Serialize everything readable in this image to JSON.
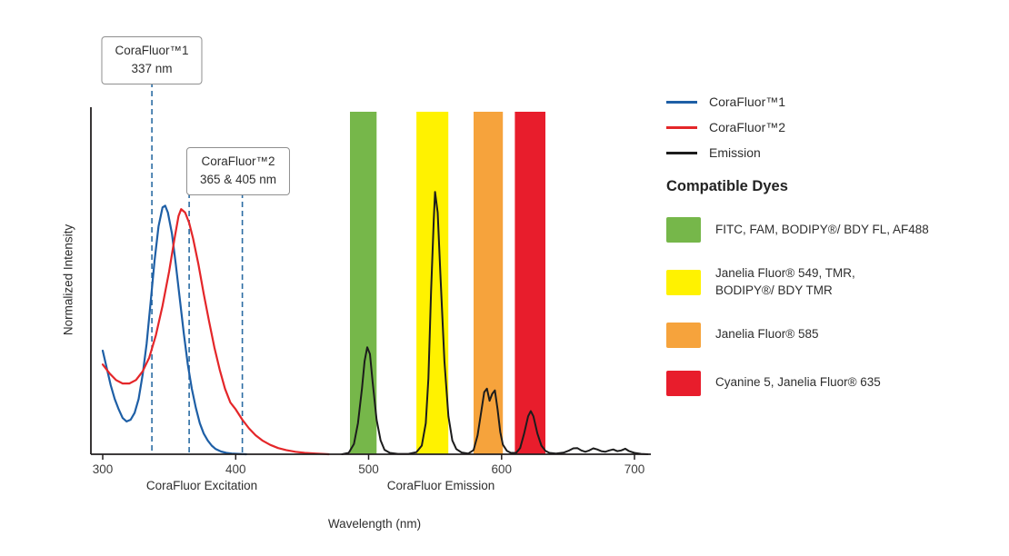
{
  "chart_data": {
    "type": "line",
    "title": "",
    "xlabel": "Wavelength (nm)",
    "ylabel": "Normalized Intensity",
    "xlim": [
      291,
      712
    ],
    "ylim": [
      0,
      1.05
    ],
    "grid": false,
    "legend_position": "right",
    "x_ticks": [
      300,
      400,
      500,
      600,
      700
    ],
    "axis_color": "#231f20",
    "tick_label_color": "#3d3d3d",
    "callout_line_color": "#2b6ca3",
    "axis_annotations": [
      {
        "text": "CoraFluor Excitation",
        "x_nm": 372
      },
      {
        "text": "CoraFluor Emission",
        "x_nm": 555
      }
    ],
    "callouts": [
      {
        "lines": [
          "CoraFluor™1",
          "337 nm"
        ],
        "wavelengths_nm": [
          337
        ]
      },
      {
        "lines": [
          "CoraFluor™2",
          "365 & 405 nm"
        ],
        "wavelengths_nm": [
          365,
          405
        ]
      }
    ],
    "bands": [
      {
        "id": "green",
        "from_nm": 486,
        "to_nm": 506,
        "color": "#76b74a"
      },
      {
        "id": "yellow",
        "from_nm": 536,
        "to_nm": 560,
        "color": "#fff200"
      },
      {
        "id": "orange",
        "from_nm": 579,
        "to_nm": 601,
        "color": "#f6a33c"
      },
      {
        "id": "red",
        "from_nm": 610,
        "to_nm": 633,
        "color": "#e81d2c"
      }
    ],
    "series": [
      {
        "id": "corafluor-1-excitation",
        "name": "CoraFluor™1",
        "color": "#1e5fa6",
        "stroke_width": 2.2,
        "points": [
          [
            300,
            0.3
          ],
          [
            303,
            0.25
          ],
          [
            306,
            0.2
          ],
          [
            309,
            0.16
          ],
          [
            312,
            0.13
          ],
          [
            315,
            0.105
          ],
          [
            318,
            0.095
          ],
          [
            321,
            0.1
          ],
          [
            324,
            0.12
          ],
          [
            327,
            0.16
          ],
          [
            330,
            0.23
          ],
          [
            333,
            0.32
          ],
          [
            336,
            0.44
          ],
          [
            339,
            0.56
          ],
          [
            342,
            0.66
          ],
          [
            345,
            0.715
          ],
          [
            347,
            0.72
          ],
          [
            349,
            0.7
          ],
          [
            352,
            0.64
          ],
          [
            355,
            0.55
          ],
          [
            358,
            0.45
          ],
          [
            361,
            0.35
          ],
          [
            364,
            0.26
          ],
          [
            367,
            0.19
          ],
          [
            370,
            0.135
          ],
          [
            373,
            0.09
          ],
          [
            376,
            0.06
          ],
          [
            379,
            0.04
          ],
          [
            382,
            0.025
          ],
          [
            385,
            0.015
          ],
          [
            389,
            0.008
          ],
          [
            393,
            0.004
          ],
          [
            397,
            0.002
          ],
          [
            402,
            0.001
          ],
          [
            408,
            0
          ]
        ]
      },
      {
        "id": "corafluor-2-excitation",
        "name": "CoraFluor™2",
        "color": "#e42629",
        "stroke_width": 2.2,
        "points": [
          [
            300,
            0.26
          ],
          [
            305,
            0.235
          ],
          [
            310,
            0.215
          ],
          [
            315,
            0.205
          ],
          [
            320,
            0.205
          ],
          [
            325,
            0.215
          ],
          [
            330,
            0.24
          ],
          [
            335,
            0.28
          ],
          [
            340,
            0.345
          ],
          [
            345,
            0.43
          ],
          [
            350,
            0.53
          ],
          [
            354,
            0.625
          ],
          [
            357,
            0.69
          ],
          [
            359,
            0.71
          ],
          [
            362,
            0.7
          ],
          [
            365,
            0.67
          ],
          [
            368,
            0.625
          ],
          [
            372,
            0.55
          ],
          [
            376,
            0.465
          ],
          [
            380,
            0.385
          ],
          [
            384,
            0.31
          ],
          [
            388,
            0.245
          ],
          [
            392,
            0.19
          ],
          [
            396,
            0.15
          ],
          [
            400,
            0.13
          ],
          [
            405,
            0.1
          ],
          [
            410,
            0.075
          ],
          [
            415,
            0.055
          ],
          [
            420,
            0.04
          ],
          [
            426,
            0.027
          ],
          [
            432,
            0.018
          ],
          [
            438,
            0.012
          ],
          [
            445,
            0.007
          ],
          [
            452,
            0.004
          ],
          [
            460,
            0.002
          ],
          [
            470,
            0
          ]
        ]
      },
      {
        "id": "emission",
        "name": "Emission",
        "color": "#1c1c1c",
        "stroke_width": 2,
        "points": [
          [
            480,
            0
          ],
          [
            485,
            0.004
          ],
          [
            489,
            0.03
          ],
          [
            492,
            0.09
          ],
          [
            495,
            0.19
          ],
          [
            497,
            0.27
          ],
          [
            499,
            0.31
          ],
          [
            501,
            0.29
          ],
          [
            503,
            0.21
          ],
          [
            506,
            0.1
          ],
          [
            509,
            0.04
          ],
          [
            512,
            0.013
          ],
          [
            516,
            0.004
          ],
          [
            522,
            0.001
          ],
          [
            530,
            0.001
          ],
          [
            536,
            0.006
          ],
          [
            540,
            0.025
          ],
          [
            543,
            0.09
          ],
          [
            545,
            0.22
          ],
          [
            547,
            0.47
          ],
          [
            549,
            0.68
          ],
          [
            550,
            0.76
          ],
          [
            552,
            0.7
          ],
          [
            554,
            0.52
          ],
          [
            557,
            0.27
          ],
          [
            560,
            0.11
          ],
          [
            563,
            0.04
          ],
          [
            566,
            0.015
          ],
          [
            570,
            0.005
          ],
          [
            575,
            0.002
          ],
          [
            579,
            0.012
          ],
          [
            582,
            0.055
          ],
          [
            585,
            0.13
          ],
          [
            587,
            0.18
          ],
          [
            589,
            0.19
          ],
          [
            591,
            0.155
          ],
          [
            593,
            0.175
          ],
          [
            595,
            0.185
          ],
          [
            597,
            0.13
          ],
          [
            599,
            0.065
          ],
          [
            601,
            0.028
          ],
          [
            604,
            0.01
          ],
          [
            607,
            0.004
          ],
          [
            611,
            0.004
          ],
          [
            614,
            0.018
          ],
          [
            617,
            0.06
          ],
          [
            620,
            0.11
          ],
          [
            622,
            0.125
          ],
          [
            624,
            0.11
          ],
          [
            627,
            0.06
          ],
          [
            630,
            0.025
          ],
          [
            633,
            0.01
          ],
          [
            636,
            0.004
          ],
          [
            641,
            0.002
          ],
          [
            647,
            0.005
          ],
          [
            651,
            0.011
          ],
          [
            654,
            0.017
          ],
          [
            657,
            0.018
          ],
          [
            660,
            0.011
          ],
          [
            663,
            0.007
          ],
          [
            666,
            0.011
          ],
          [
            669,
            0.017
          ],
          [
            672,
            0.014
          ],
          [
            675,
            0.009
          ],
          [
            678,
            0.007
          ],
          [
            681,
            0.011
          ],
          [
            684,
            0.014
          ],
          [
            687,
            0.009
          ],
          [
            690,
            0.011
          ],
          [
            693,
            0.016
          ],
          [
            696,
            0.009
          ],
          [
            700,
            0.004
          ],
          [
            705,
            0.001
          ],
          [
            710,
            0
          ]
        ]
      }
    ]
  },
  "legend": {
    "items": [
      {
        "label": "CoraFluor™1",
        "color": "#1e5fa6"
      },
      {
        "label": "CoraFluor™2",
        "color": "#e42629"
      },
      {
        "label": "Emission",
        "color": "#1c1c1c"
      }
    ]
  },
  "dyes": {
    "heading": "Compatible Dyes",
    "items": [
      {
        "label": "FITC, FAM, BODIPY®/ BDY FL, AF488",
        "color": "#76b74a"
      },
      {
        "label": "Janelia Fluor® 549, TMR,\nBODIPY®/ BDY TMR",
        "color": "#fff200"
      },
      {
        "label": "Janelia Fluor® 585",
        "color": "#f6a33c"
      },
      {
        "label": "Cyanine 5, Janelia Fluor® 635",
        "color": "#e81d2c"
      }
    ]
  }
}
